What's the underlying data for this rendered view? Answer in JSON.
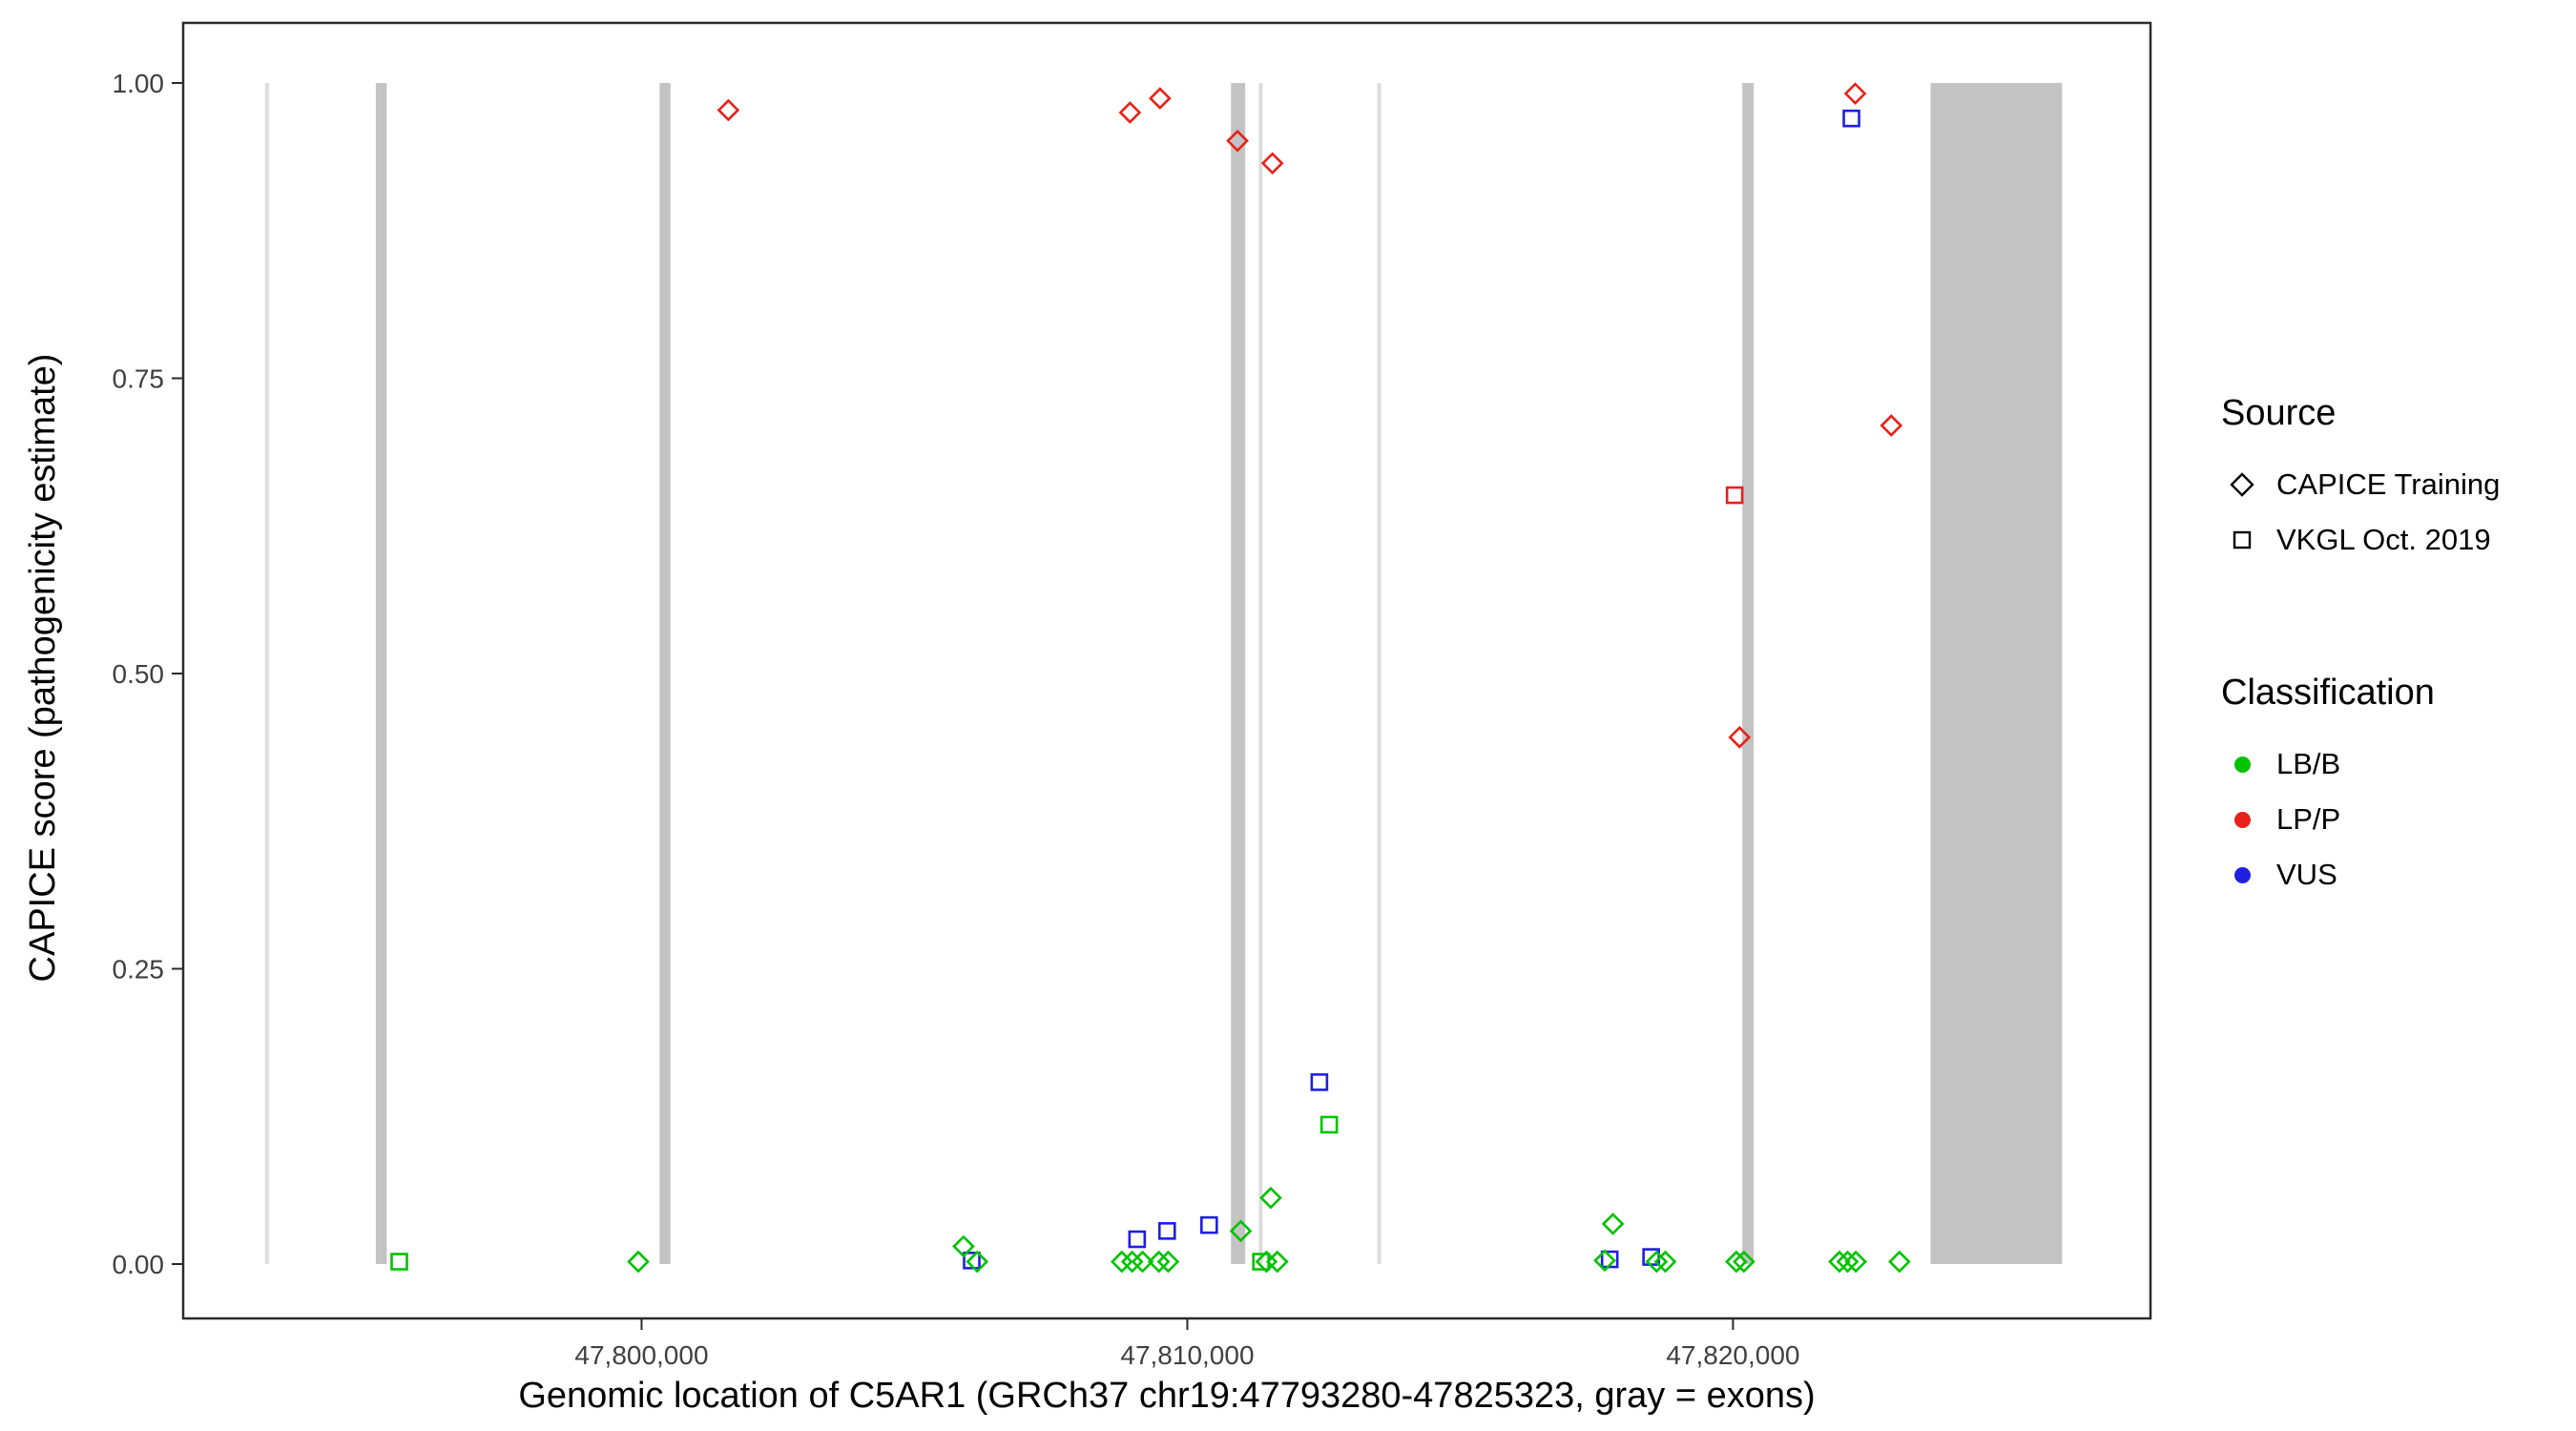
{
  "chart_data": {
    "type": "scatter",
    "title": "",
    "xlabel": "Genomic location of C5AR1 (GRCh37 chr19:47793280-47825323, gray = exons)",
    "ylabel": "CAPICE score (pathogenicity estimate)",
    "x_domain": [
      47791600,
      47827650
    ],
    "y_domain": [
      0,
      1
    ],
    "grid": "off",
    "legend_position": "right",
    "x_ticks": [
      {
        "value": 47800000,
        "label": "47,800,000"
      },
      {
        "value": 47810000,
        "label": "47,810,000"
      },
      {
        "value": 47820000,
        "label": "47,820,000"
      }
    ],
    "y_ticks": [
      {
        "value": 0.0,
        "label": "0.00"
      },
      {
        "value": 0.25,
        "label": "0.25"
      },
      {
        "value": 0.5,
        "label": "0.50"
      },
      {
        "value": 0.75,
        "label": "0.75"
      },
      {
        "value": 1.0,
        "label": "1.00"
      }
    ],
    "colors": {
      "LB/B": "#00c300",
      "LP/P": "#e8211a",
      "VUS": "#1f1fe0",
      "exon": "#c3c3c3",
      "exon_thin": "#dcdcdc"
    },
    "shape_by_source": {
      "CAPICE Training": "diamond",
      "VKGL Oct. 2019": "square"
    },
    "exons": [
      {
        "start": 47793100,
        "end": 47793170,
        "thin": true
      },
      {
        "start": 47795130,
        "end": 47795330,
        "thin": false
      },
      {
        "start": 47800330,
        "end": 47800530,
        "thin": false
      },
      {
        "start": 47810800,
        "end": 47811060,
        "thin": false
      },
      {
        "start": 47811310,
        "end": 47811380,
        "thin": true
      },
      {
        "start": 47813480,
        "end": 47813550,
        "thin": true
      },
      {
        "start": 47820170,
        "end": 47820380,
        "thin": false
      },
      {
        "start": 47823620,
        "end": 47826030,
        "thin": false
      }
    ],
    "points": [
      {
        "pos": 47801590,
        "score": 0.977,
        "source": "CAPICE Training",
        "class": "LP/P"
      },
      {
        "pos": 47808950,
        "score": 0.975,
        "source": "CAPICE Training",
        "class": "LP/P"
      },
      {
        "pos": 47809500,
        "score": 0.987,
        "source": "CAPICE Training",
        "class": "LP/P"
      },
      {
        "pos": 47810920,
        "score": 0.951,
        "source": "CAPICE Training",
        "class": "LP/P"
      },
      {
        "pos": 47811560,
        "score": 0.932,
        "source": "CAPICE Training",
        "class": "LP/P"
      },
      {
        "pos": 47822240,
        "score": 0.991,
        "source": "CAPICE Training",
        "class": "LP/P"
      },
      {
        "pos": 47822900,
        "score": 0.71,
        "source": "CAPICE Training",
        "class": "LP/P"
      },
      {
        "pos": 47820120,
        "score": 0.446,
        "source": "CAPICE Training",
        "class": "LP/P"
      },
      {
        "pos": 47820030,
        "score": 0.651,
        "source": "VKGL Oct. 2019",
        "class": "LP/P"
      },
      {
        "pos": 47822170,
        "score": 0.97,
        "source": "VKGL Oct. 2019",
        "class": "VUS"
      },
      {
        "pos": 47812420,
        "score": 0.154,
        "source": "VKGL Oct. 2019",
        "class": "VUS"
      },
      {
        "pos": 47809080,
        "score": 0.021,
        "source": "VKGL Oct. 2019",
        "class": "VUS"
      },
      {
        "pos": 47809630,
        "score": 0.028,
        "source": "VKGL Oct. 2019",
        "class": "VUS"
      },
      {
        "pos": 47810400,
        "score": 0.033,
        "source": "VKGL Oct. 2019",
        "class": "VUS"
      },
      {
        "pos": 47806050,
        "score": 0.003,
        "source": "VKGL Oct. 2019",
        "class": "VUS"
      },
      {
        "pos": 47817740,
        "score": 0.004,
        "source": "VKGL Oct. 2019",
        "class": "VUS"
      },
      {
        "pos": 47818500,
        "score": 0.006,
        "source": "VKGL Oct. 2019",
        "class": "VUS"
      },
      {
        "pos": 47795560,
        "score": 0.002,
        "source": "VKGL Oct. 2019",
        "class": "LB/B"
      },
      {
        "pos": 47812600,
        "score": 0.118,
        "source": "VKGL Oct. 2019",
        "class": "LB/B"
      },
      {
        "pos": 47811350,
        "score": 0.002,
        "source": "VKGL Oct. 2019",
        "class": "LB/B"
      },
      {
        "pos": 47799940,
        "score": 0.002,
        "source": "CAPICE Training",
        "class": "LB/B"
      },
      {
        "pos": 47805900,
        "score": 0.015,
        "source": "CAPICE Training",
        "class": "LB/B"
      },
      {
        "pos": 47806150,
        "score": 0.002,
        "source": "CAPICE Training",
        "class": "LB/B"
      },
      {
        "pos": 47808800,
        "score": 0.002,
        "source": "CAPICE Training",
        "class": "LB/B"
      },
      {
        "pos": 47808990,
        "score": 0.002,
        "source": "CAPICE Training",
        "class": "LB/B"
      },
      {
        "pos": 47809180,
        "score": 0.002,
        "source": "CAPICE Training",
        "class": "LB/B"
      },
      {
        "pos": 47809480,
        "score": 0.002,
        "source": "CAPICE Training",
        "class": "LB/B"
      },
      {
        "pos": 47809650,
        "score": 0.002,
        "source": "CAPICE Training",
        "class": "LB/B"
      },
      {
        "pos": 47810980,
        "score": 0.028,
        "source": "CAPICE Training",
        "class": "LB/B"
      },
      {
        "pos": 47811450,
        "score": 0.002,
        "source": "CAPICE Training",
        "class": "LB/B"
      },
      {
        "pos": 47811530,
        "score": 0.056,
        "source": "CAPICE Training",
        "class": "LB/B"
      },
      {
        "pos": 47811650,
        "score": 0.002,
        "source": "CAPICE Training",
        "class": "LB/B"
      },
      {
        "pos": 47817650,
        "score": 0.003,
        "source": "CAPICE Training",
        "class": "LB/B"
      },
      {
        "pos": 47817800,
        "score": 0.034,
        "source": "CAPICE Training",
        "class": "LB/B"
      },
      {
        "pos": 47818600,
        "score": 0.002,
        "source": "CAPICE Training",
        "class": "LB/B"
      },
      {
        "pos": 47818760,
        "score": 0.002,
        "source": "CAPICE Training",
        "class": "LB/B"
      },
      {
        "pos": 47820060,
        "score": 0.002,
        "source": "CAPICE Training",
        "class": "LB/B"
      },
      {
        "pos": 47820200,
        "score": 0.002,
        "source": "CAPICE Training",
        "class": "LB/B"
      },
      {
        "pos": 47821950,
        "score": 0.002,
        "source": "CAPICE Training",
        "class": "LB/B"
      },
      {
        "pos": 47822100,
        "score": 0.002,
        "source": "CAPICE Training",
        "class": "LB/B"
      },
      {
        "pos": 47822250,
        "score": 0.002,
        "source": "CAPICE Training",
        "class": "LB/B"
      },
      {
        "pos": 47823050,
        "score": 0.002,
        "source": "CAPICE Training",
        "class": "LB/B"
      }
    ]
  },
  "legend": {
    "source": {
      "title": "Source",
      "items": [
        {
          "label": "CAPICE Training"
        },
        {
          "label": "VKGL Oct. 2019"
        }
      ]
    },
    "classification": {
      "title": "Classification",
      "items": [
        {
          "label": "LB/B"
        },
        {
          "label": "LP/P"
        },
        {
          "label": "VUS"
        }
      ]
    }
  }
}
